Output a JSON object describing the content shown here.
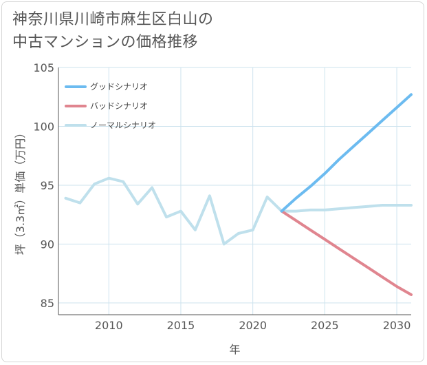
{
  "title": "神奈川県川崎市麻生区白山の中古マンションの価格推移",
  "colors": {
    "good": "#6cbbf0",
    "bad": "#e0858f",
    "normal": "#bfe0ec",
    "grid": "#cde3ee",
    "axis": "#555555"
  },
  "chart_data": {
    "type": "line",
    "title": "神奈川県川崎市麻生区白山の中古マンションの価格推移",
    "xlabel": "年",
    "ylabel": "坪（3.3㎡）単価（万円）",
    "xlim": [
      2006.5,
      2031
    ],
    "ylim": [
      84,
      105
    ],
    "xticks": [
      2010,
      2015,
      2020,
      2025,
      2030
    ],
    "yticks": [
      85,
      90,
      95,
      100,
      105
    ],
    "grid": true,
    "legend_position": "top-left",
    "series": [
      {
        "name": "グッドシナリオ",
        "color": "#6cbbf0",
        "x": [
          2022,
          2023,
          2024,
          2025,
          2026,
          2027,
          2028,
          2029,
          2030,
          2031
        ],
        "y": [
          92.8,
          93.9,
          94.9,
          96.0,
          97.2,
          98.3,
          99.4,
          100.5,
          101.6,
          102.7
        ]
      },
      {
        "name": "バッドシナリオ",
        "color": "#e0858f",
        "x": [
          2022,
          2023,
          2024,
          2025,
          2026,
          2027,
          2028,
          2029,
          2030,
          2031
        ],
        "y": [
          92.8,
          92.0,
          91.2,
          90.4,
          89.6,
          88.8,
          88.0,
          87.2,
          86.4,
          85.7
        ]
      },
      {
        "name": "ノーマルシナリオ",
        "color": "#bfe0ec",
        "x": [
          2007,
          2008,
          2009,
          2010,
          2011,
          2012,
          2013,
          2014,
          2015,
          2016,
          2017,
          2018,
          2019,
          2020,
          2021,
          2022,
          2023,
          2024,
          2025,
          2026,
          2027,
          2028,
          2029,
          2030,
          2031
        ],
        "y": [
          93.9,
          93.5,
          95.1,
          95.6,
          95.3,
          93.4,
          94.8,
          92.3,
          92.8,
          91.2,
          94.1,
          90.0,
          90.9,
          91.2,
          94.0,
          92.8,
          92.8,
          92.9,
          92.9,
          93.0,
          93.1,
          93.2,
          93.3,
          93.3,
          93.3
        ]
      }
    ]
  }
}
